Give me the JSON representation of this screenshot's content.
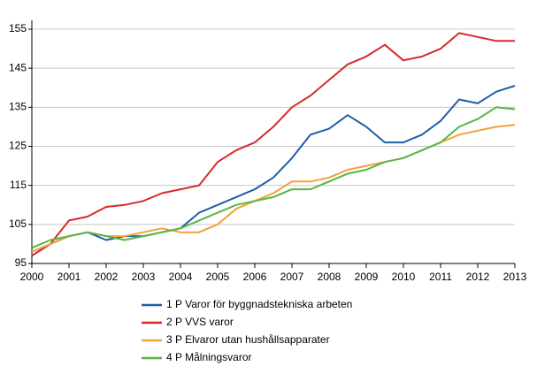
{
  "chart_data": {
    "type": "line",
    "x": [
      2000,
      2000.5,
      2001,
      2001.5,
      2002,
      2002.5,
      2003,
      2003.5,
      2004,
      2004.5,
      2005,
      2005.5,
      2006,
      2006.5,
      2007,
      2007.5,
      2008,
      2008.5,
      2009,
      2009.5,
      2010,
      2010.5,
      2011,
      2011.5,
      2012,
      2012.5,
      2013
    ],
    "series": [
      {
        "name": "1 P Varor för byggnadstekniska arbeten",
        "color": "#1f5fa6",
        "values": [
          97,
          100,
          102,
          103,
          101,
          102,
          102,
          103,
          104,
          108,
          110,
          112,
          114,
          117,
          122,
          128,
          129.5,
          133,
          130,
          126,
          126,
          128,
          131.5,
          137,
          136,
          139,
          140.5
        ]
      },
      {
        "name": "2 P VVS varor",
        "color": "#d62a2a",
        "values": [
          97,
          100,
          106,
          107,
          109.5,
          110,
          111,
          113,
          114,
          115,
          121,
          124,
          126,
          130,
          135,
          138,
          142,
          146,
          148,
          151,
          147,
          148,
          150,
          154,
          153,
          152,
          152
        ]
      },
      {
        "name": "3 P Elvaror utan hushållsapparater",
        "color": "#f5a03a",
        "values": [
          98,
          100,
          102,
          103,
          102,
          102,
          103,
          104,
          103,
          103,
          105,
          109,
          111,
          113,
          116,
          116,
          117,
          119,
          120,
          121,
          122,
          124,
          126,
          128,
          129,
          130,
          130.5
        ]
      },
      {
        "name": "4 P Målningsvaror",
        "color": "#5ab545",
        "values": [
          99,
          101,
          102,
          103,
          102,
          101,
          102,
          103,
          104,
          106,
          108,
          110,
          111,
          112,
          114,
          114,
          116,
          118,
          119,
          121,
          122,
          124,
          126,
          130,
          132,
          135,
          134.5
        ]
      }
    ],
    "xlim": [
      2000,
      2013
    ],
    "xticks": [
      2000,
      2001,
      2002,
      2003,
      2004,
      2005,
      2006,
      2007,
      2008,
      2009,
      2010,
      2011,
      2012,
      2013
    ],
    "ylim": [
      95,
      155
    ],
    "yticks": [
      95,
      105,
      115,
      125,
      135,
      145,
      155
    ],
    "grid": true
  }
}
